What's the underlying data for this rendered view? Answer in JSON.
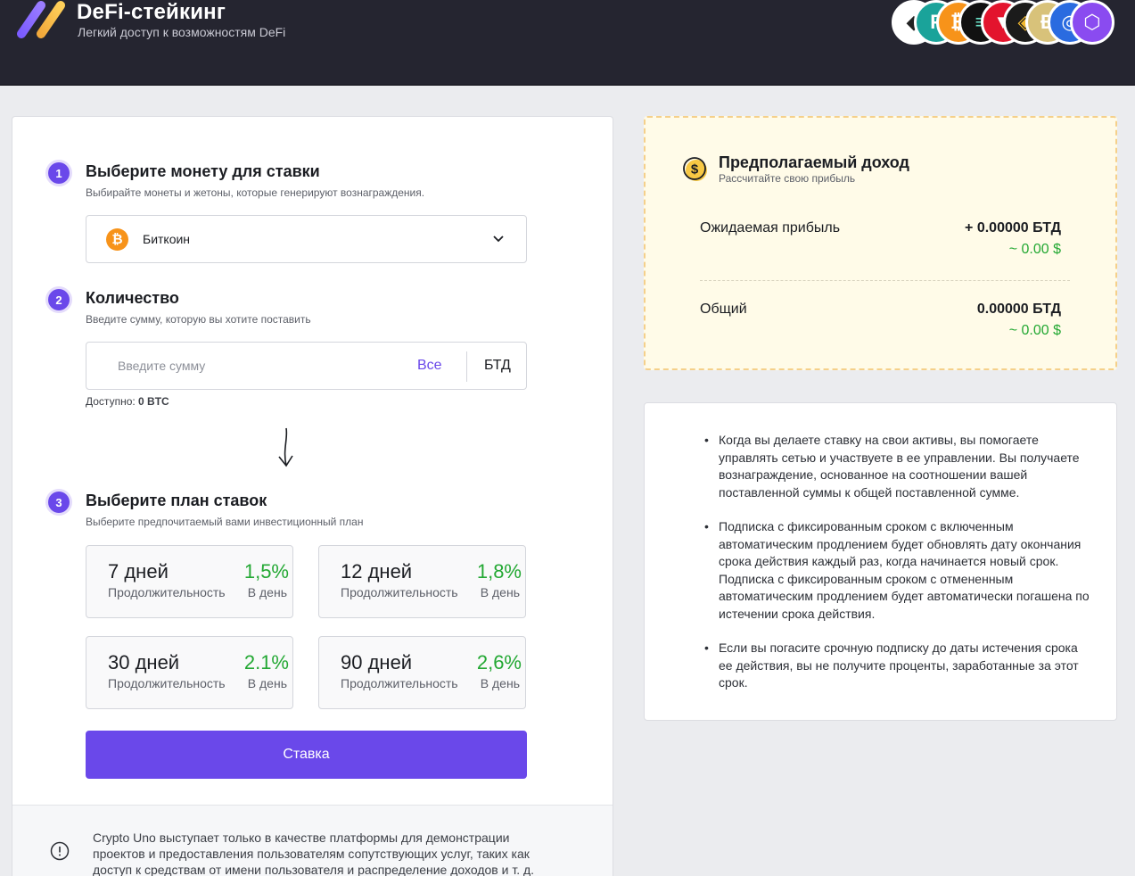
{
  "header": {
    "title": "DeFi-стейкинг",
    "subtitle": "Легкий доступ к возможностям DeFi",
    "coins": [
      {
        "icon": "ethereum-icon",
        "glyph": "◆",
        "color": "#ffffff",
        "fg": "#222222"
      },
      {
        "icon": "tether-f-icon",
        "glyph": "F",
        "color": "#1aa39a",
        "fg": "#ffffff"
      },
      {
        "icon": "bitcoin-icon",
        "glyph": "₿",
        "color": "#f7931a",
        "fg": "#ffffff"
      },
      {
        "icon": "solana-icon",
        "glyph": "≡",
        "color": "#111111",
        "fg": "#6be3c9"
      },
      {
        "icon": "tron-icon",
        "glyph": "▼",
        "color": "#e3142d",
        "fg": "#ffffff"
      },
      {
        "icon": "binance-icon",
        "glyph": "◈",
        "color": "#1b1b1b",
        "fg": "#f3ba2f"
      },
      {
        "icon": "dogecoin-icon",
        "glyph": "Ð",
        "color": "#d8c27a",
        "fg": "#ffffff"
      },
      {
        "icon": "polkadot-icon",
        "glyph": "◎",
        "color": "#2a6be0",
        "fg": "#ffffff"
      },
      {
        "icon": "chainlink-icon",
        "glyph": "⬡",
        "color": "#8a4bf0",
        "fg": "#ffffff"
      }
    ]
  },
  "steps": {
    "one": {
      "num": "1",
      "title": "Выберите монету для ставки",
      "sub": "Выбирайте монеты и жетоны, которые генерируют вознаграждения."
    },
    "two": {
      "num": "2",
      "title": "Количество",
      "sub": "Введите сумму, которую вы хотите поставить"
    },
    "three": {
      "num": "3",
      "title": "Выберите план ставок",
      "sub": "Выберите предпочитаемый вами инвестиционный план"
    }
  },
  "coin_select": {
    "icon_glyph": "₿",
    "value": "Биткоин"
  },
  "amount": {
    "placeholder": "Введите сумму",
    "all_label": "Все",
    "unit": "БТД",
    "available_label": "Доступно:",
    "available_value": "0 BTC"
  },
  "plans": [
    {
      "days": "7 дней",
      "duration_label": "Продолжительность",
      "rate": "1,5%",
      "per_label": "В день"
    },
    {
      "days": "12 дней",
      "duration_label": "Продолжительность",
      "rate": "1,8%",
      "per_label": "В день"
    },
    {
      "days": "30 дней",
      "duration_label": "Продолжительность",
      "rate": "2.1%",
      "per_label": "В день"
    },
    {
      "days": "90 дней",
      "duration_label": "Продолжительность",
      "rate": "2,6%",
      "per_label": "В день"
    }
  ],
  "stake_button": "Ставка",
  "disclaimer": "Crypto Uno выступает только в качестве платформы для демонстрации проектов и предоставления пользователям сопутствующих услуг, таких как доступ к средствам от имени пользователя и распределение доходов и т. д.",
  "income": {
    "title": "Предполагаемый доход",
    "sub": "Рассчитайте свою прибыль",
    "expected_label": "Ожидаемая прибыль",
    "expected_value": "+ 0.00000 БТД",
    "expected_usd": "~ 0.00 $",
    "total_label": "Общий",
    "total_value": "0.00000 БТД",
    "total_usd": "~ 0.00 $"
  },
  "info": [
    "Когда вы делаете ставку на свои активы, вы помогаете управлять сетью и участвуете в ее управлении. Вы получаете вознаграждение, основанное на соотношении вашей поставленной суммы к общей поставленной сумме.",
    "Подписка с фиксированным сроком с включенным автоматическим продлением будет обновлять дату окончания срока действия каждый раз, когда начинается новый срок. Подписка с фиксированным сроком с отмененным автоматическим продлением будет автоматически погашена по истечении срока действия.",
    "Если вы погасите срочную подписку до даты истечения срока ее действия, вы не получите проценты, заработанные за этот срок."
  ]
}
